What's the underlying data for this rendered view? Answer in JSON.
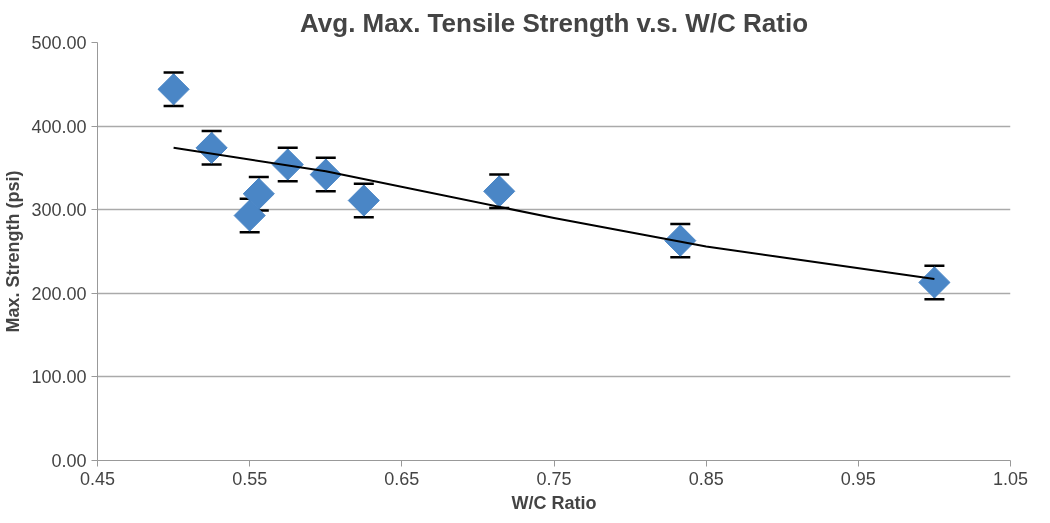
{
  "chart_data": {
    "type": "scatter",
    "title": "Avg. Max. Tensile Strength v.s. W/C Ratio",
    "xlabel": "W/C Ratio",
    "ylabel": "Max. Strength (psi)",
    "grid": "y",
    "xlim": [
      0.45,
      1.05
    ],
    "xticks": [
      0.45,
      0.55,
      0.65,
      0.75,
      0.85,
      0.95,
      1.05
    ],
    "ylim": [
      0,
      500
    ],
    "yticks": [
      {
        "value": 0,
        "label": "0.00"
      },
      {
        "value": 100,
        "label": "100.00"
      },
      {
        "value": 200,
        "label": "200.00"
      },
      {
        "value": 300,
        "label": "300.00"
      },
      {
        "value": 400,
        "label": "400.00"
      },
      {
        "value": 500,
        "label": "500.00"
      }
    ],
    "series": [
      {
        "marker": "diamond",
        "color": "#4a86c6",
        "x": [
          0.5,
          0.525,
          0.55,
          0.556,
          0.575,
          0.6,
          0.625,
          0.714,
          0.833,
          1.0
        ],
        "values": [
          444,
          374,
          293,
          319,
          354,
          342,
          311,
          322,
          263,
          213
        ],
        "errors": [
          20,
          20,
          20,
          20,
          20,
          20,
          20,
          20,
          20,
          20
        ]
      },
      {
        "type": "line",
        "color": "#000000",
        "x": [
          0.5,
          0.6,
          0.75,
          0.85,
          1.0
        ],
        "values": [
          374,
          346,
          290,
          256,
          217
        ]
      }
    ]
  }
}
